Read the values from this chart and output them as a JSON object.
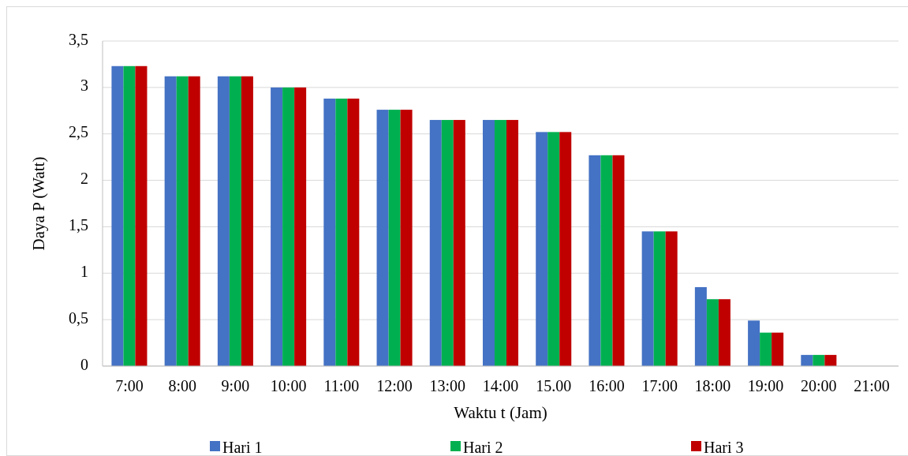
{
  "chart_data": {
    "type": "bar",
    "xlabel": "Waktu t (Jam)",
    "ylabel": "Daya P (Watt)",
    "categories": [
      "7:00",
      "8:00",
      "9:00",
      "10:00",
      "11:00",
      "12:00",
      "13:00",
      "14:00",
      "15.00",
      "16:00",
      "17:00",
      "18:00",
      "19:00",
      "20:00",
      "21:00"
    ],
    "series": [
      {
        "name": "Hari 1",
        "color": "#4472c4",
        "values": [
          3.23,
          3.12,
          3.12,
          3.0,
          2.88,
          2.76,
          2.65,
          2.65,
          2.52,
          2.27,
          1.45,
          0.85,
          0.49,
          0.12,
          0
        ]
      },
      {
        "name": "Hari 2",
        "color": "#00b050",
        "values": [
          3.23,
          3.12,
          3.12,
          3.0,
          2.88,
          2.76,
          2.65,
          2.65,
          2.52,
          2.27,
          1.45,
          0.72,
          0.36,
          0.12,
          0
        ]
      },
      {
        "name": "Hari 3",
        "color": "#c00000",
        "values": [
          3.23,
          3.12,
          3.12,
          3.0,
          2.88,
          2.76,
          2.65,
          2.65,
          2.52,
          2.27,
          1.45,
          0.72,
          0.36,
          0.12,
          0
        ]
      }
    ],
    "ylim": [
      0,
      3.5
    ],
    "yticks": [
      {
        "value": 0,
        "label": "0"
      },
      {
        "value": 0.5,
        "label": "0,5"
      },
      {
        "value": 1,
        "label": "1"
      },
      {
        "value": 1.5,
        "label": "1,5"
      },
      {
        "value": 2,
        "label": "2"
      },
      {
        "value": 2.5,
        "label": "2,5"
      },
      {
        "value": 3,
        "label": "3"
      },
      {
        "value": 3.5,
        "label": "3,5"
      }
    ],
    "grid": "y",
    "legend": "bottom"
  }
}
